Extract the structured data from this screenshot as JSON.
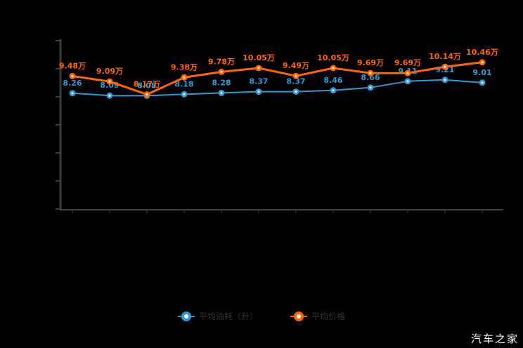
{
  "chart": {
    "title": "",
    "watermark": "汽车之家",
    "axis_color": "#3d3d3d",
    "background": "#000000",
    "label_text_color": "#333333"
  },
  "legend": {
    "items": [
      {
        "label": "平均油耗（升）",
        "color": "#2e9bd6"
      },
      {
        "label": "平均价格",
        "color": "#ff6600"
      }
    ]
  },
  "chart_data": {
    "type": "line",
    "x": [
      1,
      2,
      3,
      4,
      5,
      6,
      7,
      8,
      9,
      10,
      11,
      12
    ],
    "x_tick_labels_visible": false,
    "y_tick_labels_visible": false,
    "series": [
      {
        "name": "平均油耗（升）",
        "color": "#2e9bd6",
        "suffix": "",
        "line_width": 2,
        "values": [
          8.26,
          8.09,
          8.08,
          8.18,
          8.28,
          8.37,
          8.37,
          8.46,
          8.66,
          9.11,
          9.21,
          9.01
        ]
      },
      {
        "name": "平均价格",
        "color": "#ff6600",
        "suffix": "万",
        "line_width": 3,
        "values": [
          9.48,
          9.09,
          8.17,
          9.38,
          9.78,
          10.05,
          9.49,
          10.05,
          9.69,
          9.69,
          10.14,
          10.46
        ]
      }
    ],
    "ylim": [
      0,
      12
    ],
    "y_tick_count": 7,
    "grid": false,
    "data_labels": true,
    "legend_position": "bottom"
  }
}
